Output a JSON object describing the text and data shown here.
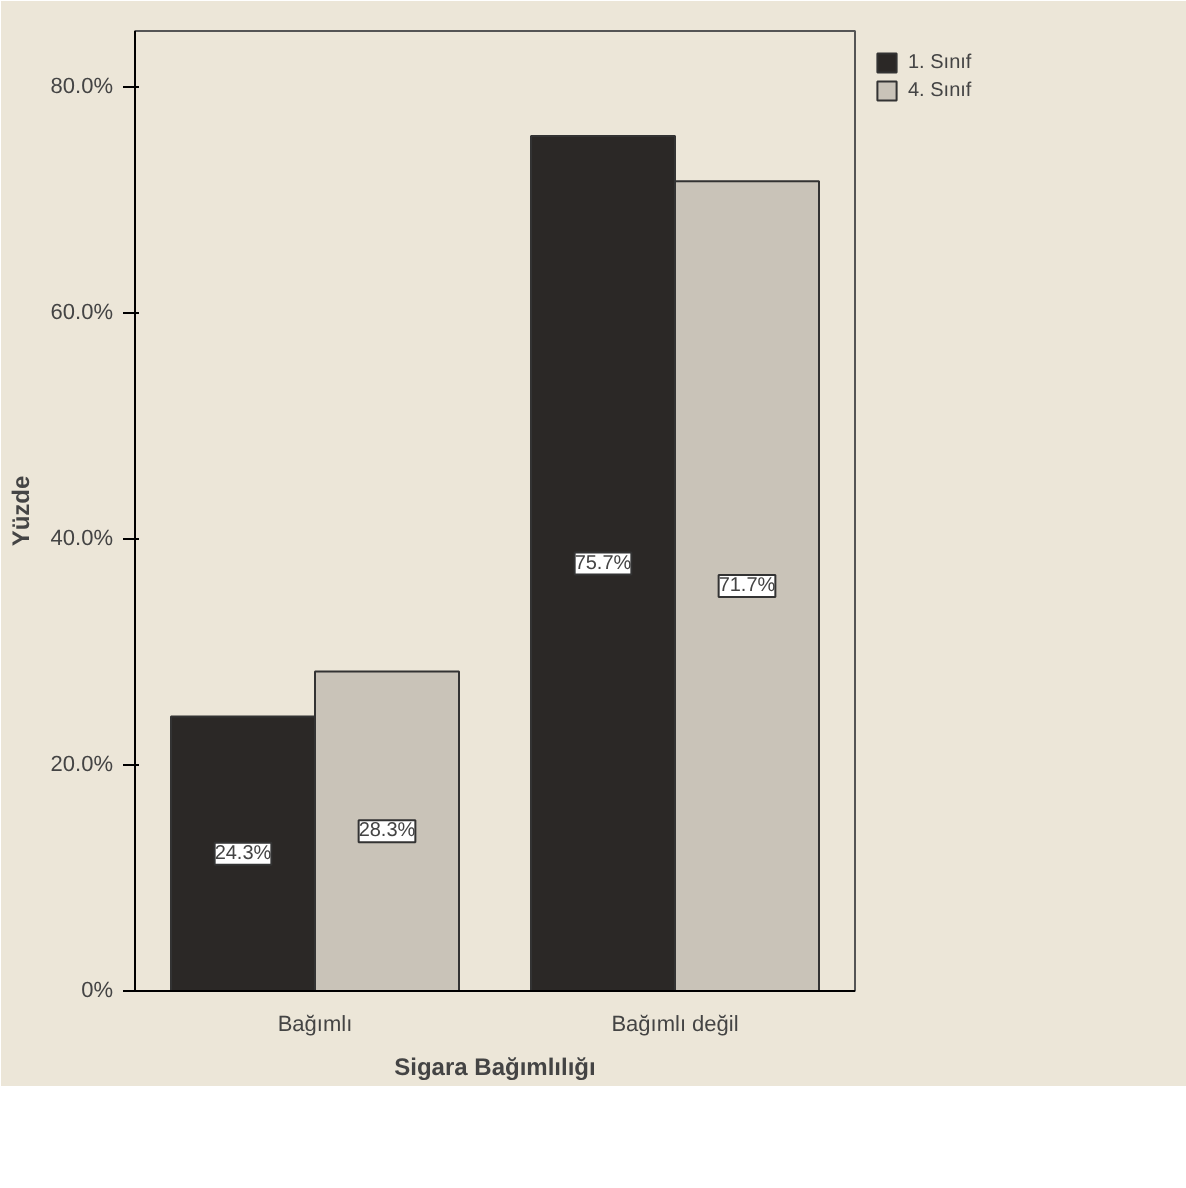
{
  "chart_data": {
    "type": "bar",
    "xlabel": "Sigara Bağımlılığı",
    "ylabel": "Yüzde",
    "categories": [
      "Bağımlı",
      "Bağımlı değil"
    ],
    "series": [
      {
        "name": "1. Sınıf",
        "color": "#2b2826",
        "values": [
          24.3,
          75.7
        ],
        "value_labels": [
          "24.3%",
          "75.7%"
        ]
      },
      {
        "name": "4. Sınıf",
        "color": "#c9c3b8",
        "values": [
          28.3,
          71.7
        ],
        "value_labels": [
          "28.3%",
          "71.7%"
        ]
      }
    ],
    "ylim": [
      0,
      85
    ],
    "yticks": [
      {
        "value": 0,
        "label": "0%"
      },
      {
        "value": 20,
        "label": "20.0%"
      },
      {
        "value": 40,
        "label": "40.0%"
      },
      {
        "value": 60,
        "label": "60.0%"
      },
      {
        "value": 80,
        "label": "80.0%"
      }
    ],
    "grid": false,
    "legend": "top right"
  }
}
